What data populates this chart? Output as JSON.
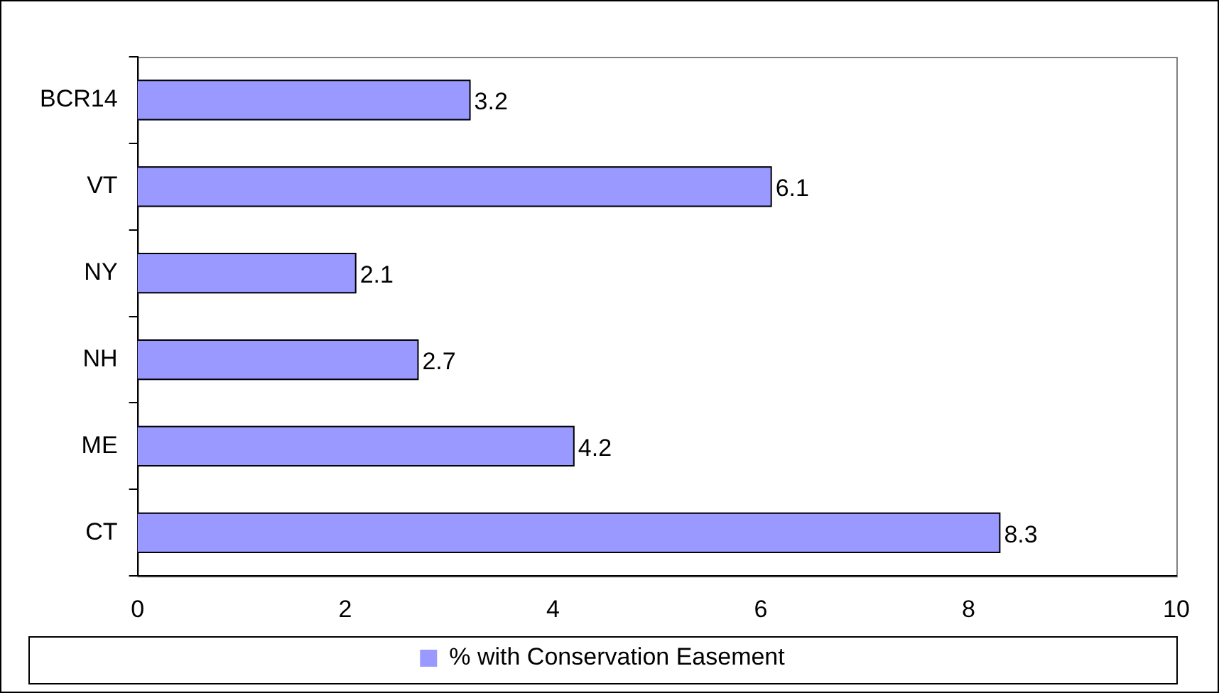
{
  "chart_data": {
    "type": "bar",
    "orientation": "horizontal",
    "categories": [
      "BCR14",
      "VT",
      "NY",
      "NH",
      "ME",
      "CT"
    ],
    "series": [
      {
        "name": "% with Conservation Easement",
        "color": "#9999ff",
        "values": [
          3.2,
          6.1,
          2.1,
          2.7,
          4.2,
          8.3
        ]
      }
    ],
    "xlim": [
      0,
      10
    ],
    "xticks": [
      0,
      2,
      4,
      6,
      8,
      10
    ],
    "grid": false,
    "legend": "bottom",
    "data_labels": true
  }
}
